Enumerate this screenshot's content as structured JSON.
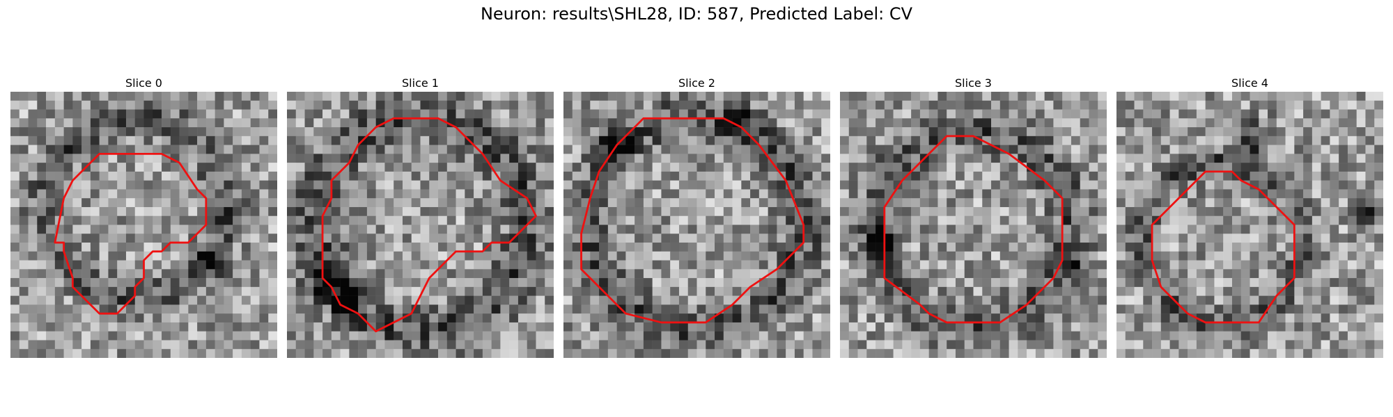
{
  "figure": {
    "title": "Neuron: results\\SHL28, ID: 587, Predicted Label: CV"
  },
  "panels": [
    {
      "title": "Slice 0"
    },
    {
      "title": "Slice 1"
    },
    {
      "title": "Slice 2"
    },
    {
      "title": "Slice 3"
    },
    {
      "title": "Slice 4"
    }
  ],
  "colors": {
    "contour": "#ee1111",
    "background": "#ffffff"
  },
  "colormap": "gray"
}
